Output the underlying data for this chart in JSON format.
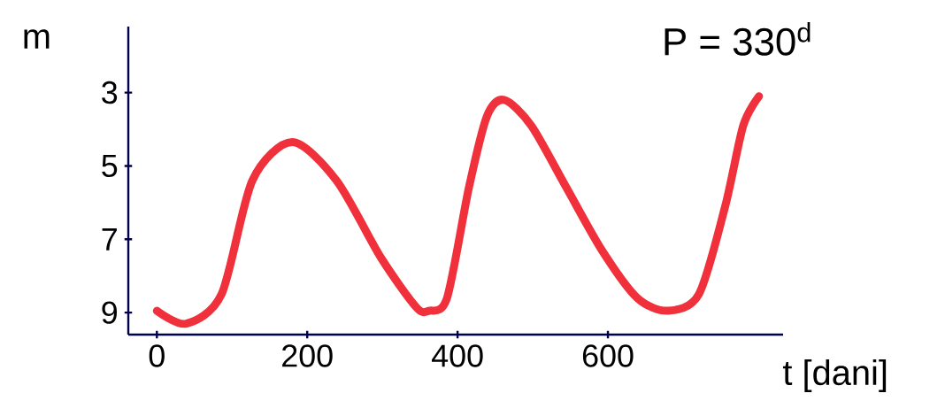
{
  "chart_data": {
    "type": "line",
    "xlabel": "t [dani]",
    "ylabel": "m",
    "annotations": [
      "P = 330$^{d}$"
    ],
    "x": [
      0,
      39,
      86,
      127,
      180,
      239,
      298,
      345,
      362,
      386,
      415,
      439,
      462,
      498,
      545,
      592,
      639,
      680,
      721,
      756,
      780,
      801
    ],
    "series": [
      {
        "color": "#f0303a",
        "values": [
          8.95,
          9.3,
          8.5,
          5.4,
          4.35,
          5.4,
          7.5,
          8.85,
          8.95,
          8.6,
          5.6,
          3.65,
          3.2,
          3.9,
          5.6,
          7.3,
          8.6,
          8.95,
          8.5,
          6.1,
          3.9,
          3.1
        ]
      }
    ],
    "xlim": [
      -38,
      833
    ],
    "ylim": [
      9.6,
      1.2
    ],
    "xticks": [
      0,
      200,
      400,
      600
    ],
    "yticks": [
      3,
      5,
      7,
      9
    ],
    "grid": false,
    "marker": "none",
    "line_style": "solid"
  }
}
